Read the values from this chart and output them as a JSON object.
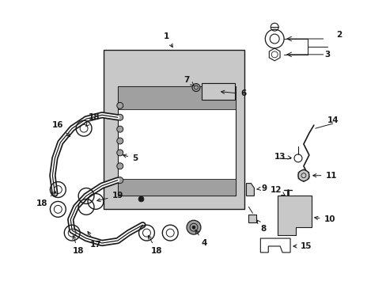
{
  "bg_color": "#ffffff",
  "line_color": "#1a1a1a",
  "gray_light": "#c8c8c8",
  "gray_med": "#a0a0a0",
  "gray_dark": "#707070",
  "fig_w": 4.89,
  "fig_h": 3.6,
  "dpi": 100
}
